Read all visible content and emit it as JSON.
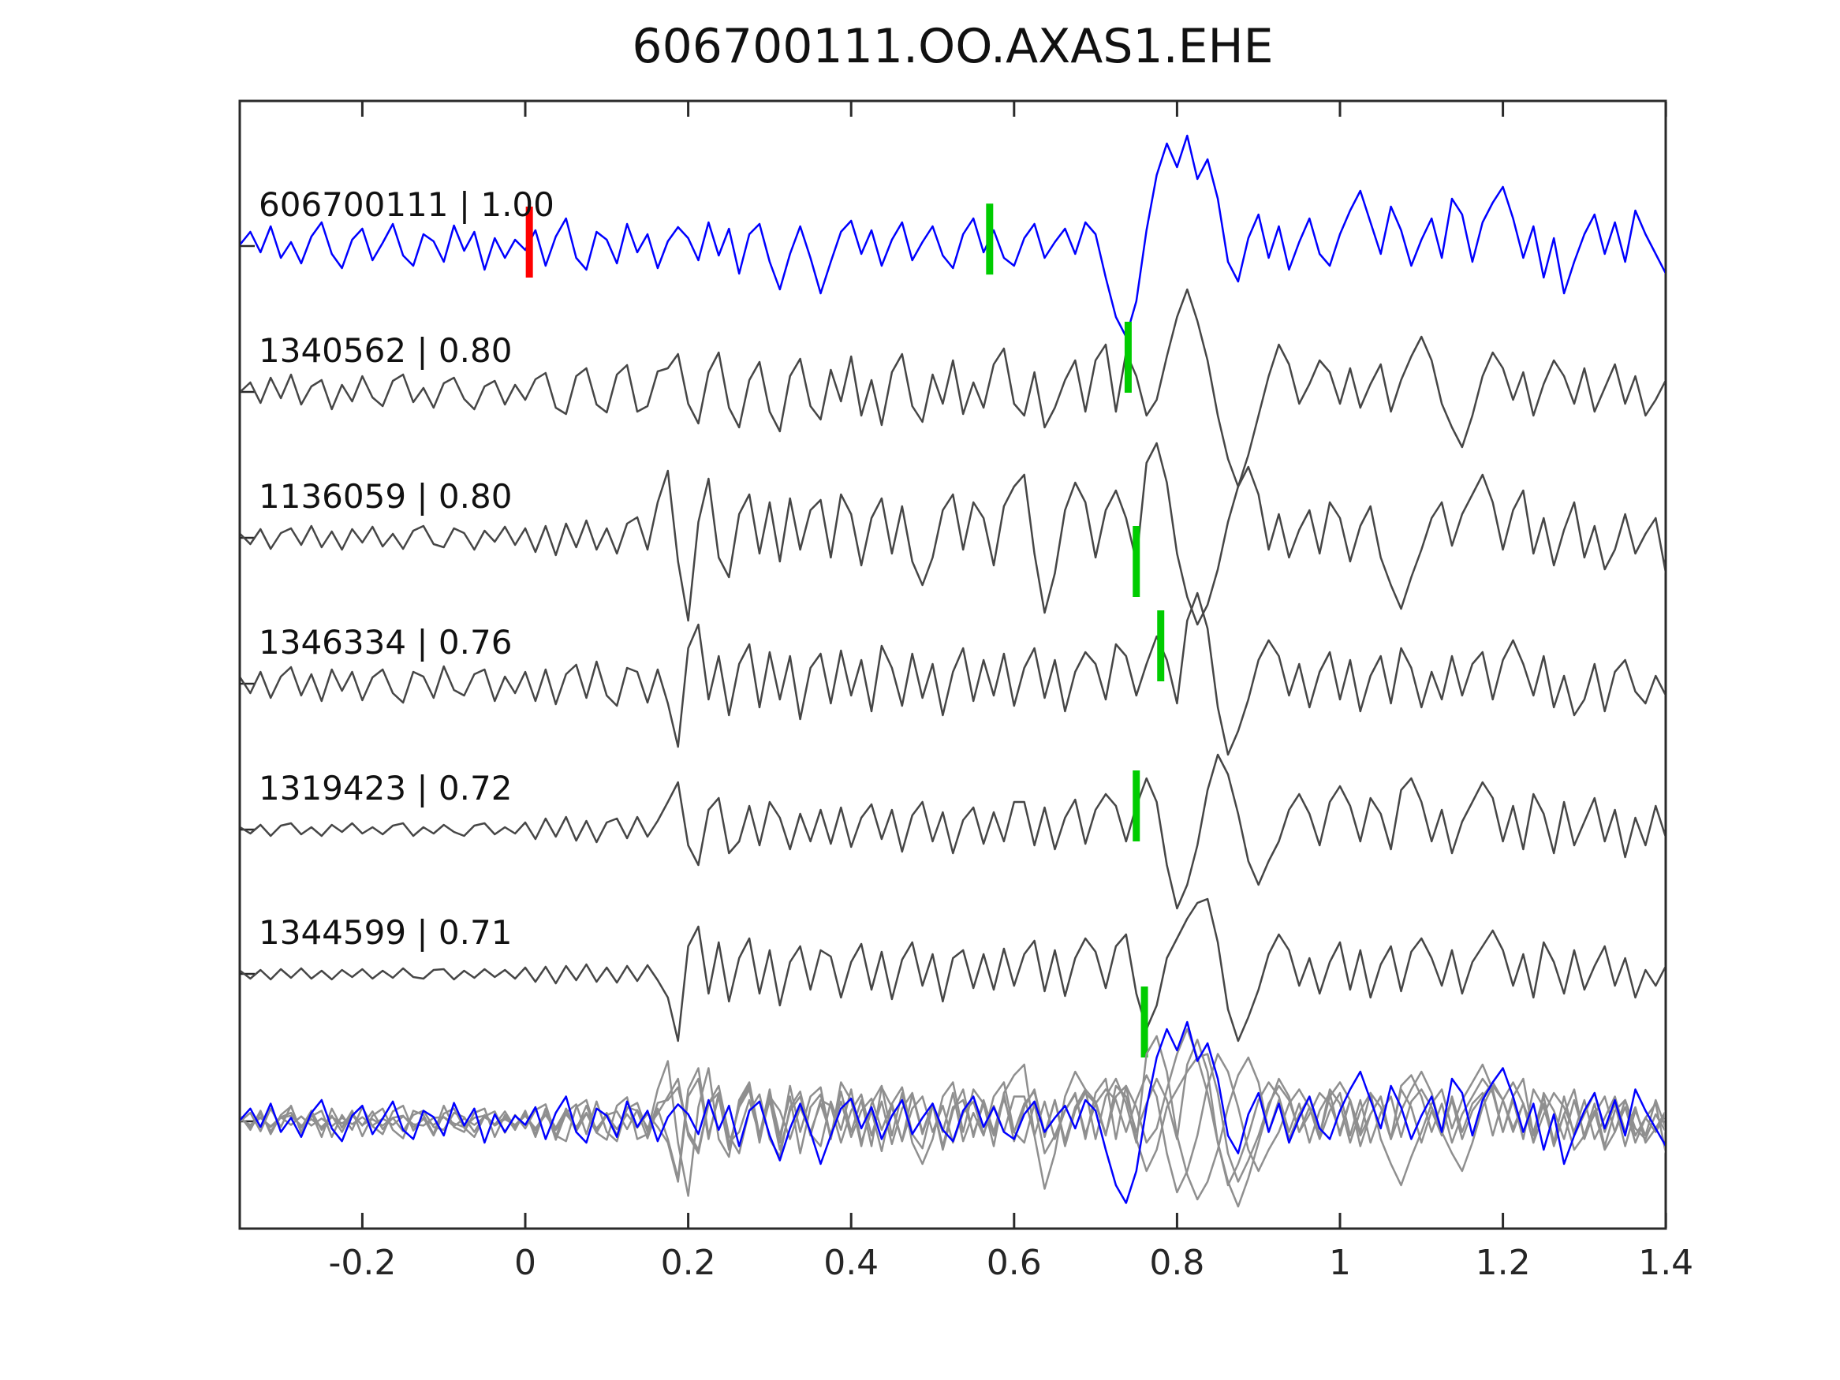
{
  "title": "606700111.OO.AXAS1.EHE",
  "colors": {
    "template_trace": "#0000ff",
    "detection_trace": "#464646",
    "overlay_gray": "#8f8f8f",
    "pick_marker_green": "#00cc00",
    "template_marker_red": "#ff0000",
    "axis": "#2a2a2a",
    "text": "#111111"
  },
  "chart_data": {
    "type": "line",
    "title": "606700111.OO.AXAS1.EHE",
    "xlabel": "",
    "ylabel": "",
    "grid": false,
    "legend": "none",
    "x_range": [
      -0.35,
      1.405
    ],
    "x_ticks": [
      -0.2,
      0,
      0.2,
      0.4,
      0.6,
      0.8,
      1,
      1.2,
      1.4
    ],
    "x_tick_labels": [
      "-0.2",
      "0",
      "0.2",
      "0.4",
      "0.6",
      "0.8",
      "1",
      "1.2",
      "1.4"
    ],
    "sample_t0": -0.35,
    "sample_dt": 0.0125,
    "traces": [
      {
        "id": "606700111",
        "correlation": "1.00",
        "label": "606700111 | 1.00",
        "role": "template",
        "color_key": "template_trace",
        "red_marker_t": 0.005,
        "green_marker_t": 0.57,
        "values": [
          2,
          18,
          -8,
          25,
          -15,
          5,
          -22,
          12,
          30,
          -10,
          -28,
          8,
          22,
          -18,
          4,
          28,
          -12,
          -25,
          15,
          6,
          -20,
          26,
          -6,
          18,
          -30,
          10,
          -15,
          8,
          -5,
          20,
          -25,
          12,
          35,
          -15,
          -30,
          18,
          8,
          -22,
          28,
          -8,
          15,
          -28,
          6,
          24,
          10,
          -18,
          30,
          -12,
          22,
          -35,
          15,
          28,
          -20,
          -55,
          -10,
          25,
          -15,
          -60,
          -20,
          18,
          32,
          -10,
          20,
          -25,
          8,
          30,
          -18,
          5,
          25,
          -12,
          -28,
          15,
          35,
          -8,
          20,
          -15,
          -25,
          10,
          28,
          -15,
          5,
          22,
          -10,
          30,
          15,
          -40,
          -90,
          -115,
          -70,
          20,
          90,
          130,
          100,
          140,
          85,
          110,
          60,
          -20,
          -45,
          10,
          40,
          -15,
          25,
          -30,
          5,
          35,
          -10,
          -25,
          15,
          45,
          70,
          30,
          -10,
          50,
          20,
          -25,
          8,
          35,
          -15,
          60,
          40,
          -20,
          30,
          55,
          75,
          35,
          -15,
          25,
          -40,
          10,
          -60,
          -20,
          15,
          40,
          -10,
          30,
          -20,
          45,
          15,
          -10,
          -35
        ]
      },
      {
        "id": "1340562",
        "correlation": "0.80",
        "label": "1340562 | 0.80",
        "role": "detection",
        "color_key": "detection_trace",
        "green_marker_t": 0.74,
        "values": [
          0,
          12,
          -14,
          18,
          -8,
          22,
          -16,
          7,
          15,
          -22,
          9,
          -12,
          20,
          -7,
          -18,
          14,
          22,
          -13,
          5,
          -20,
          11,
          18,
          -9,
          -22,
          7,
          14,
          -16,
          9,
          -10,
          16,
          24,
          -20,
          -28,
          20,
          30,
          -16,
          -26,
          22,
          34,
          -25,
          -18,
          26,
          30,
          48,
          -15,
          -40,
          25,
          50,
          -20,
          -45,
          15,
          38,
          -25,
          -50,
          20,
          42,
          -18,
          -35,
          28,
          -12,
          45,
          -30,
          15,
          -42,
          25,
          48,
          -18,
          -38,
          22,
          -15,
          40,
          -28,
          12,
          -20,
          35,
          55,
          -15,
          -30,
          25,
          -45,
          -20,
          15,
          40,
          -25,
          40,
          60,
          -25,
          50,
          20,
          -30,
          -10,
          45,
          95,
          130,
          90,
          40,
          -30,
          -85,
          -120,
          -80,
          -30,
          20,
          60,
          35,
          -15,
          10,
          40,
          25,
          -15,
          30,
          -20,
          10,
          35,
          -25,
          15,
          45,
          70,
          40,
          -15,
          -45,
          -70,
          -30,
          20,
          50,
          30,
          -10,
          25,
          -30,
          10,
          40,
          20,
          -15,
          30,
          -25,
          5,
          35,
          -15,
          20,
          -30,
          -10,
          15
        ]
      },
      {
        "id": "1136059",
        "correlation": "0.80",
        "label": "1136059 | 0.80",
        "role": "detection",
        "color_key": "detection_trace",
        "green_marker_t": 0.75,
        "values": [
          5,
          -8,
          11,
          -14,
          6,
          12,
          -9,
          15,
          -12,
          8,
          -15,
          11,
          -6,
          14,
          -11,
          5,
          -14,
          9,
          15,
          -8,
          -12,
          12,
          6,
          -15,
          9,
          -5,
          14,
          -9,
          12,
          -18,
          15,
          -22,
          18,
          -12,
          22,
          -15,
          12,
          -20,
          18,
          26,
          -15,
          45,
          85,
          -30,
          -105,
          20,
          75,
          -25,
          -50,
          30,
          55,
          -20,
          45,
          -30,
          50,
          -15,
          35,
          48,
          -25,
          55,
          30,
          -35,
          25,
          50,
          -20,
          40,
          -30,
          -60,
          -25,
          35,
          55,
          -15,
          45,
          25,
          -35,
          40,
          65,
          80,
          -20,
          -95,
          -45,
          35,
          70,
          45,
          -25,
          35,
          60,
          25,
          -30,
          95,
          120,
          70,
          -20,
          -75,
          -110,
          -85,
          -40,
          20,
          65,
          90,
          55,
          -15,
          30,
          -25,
          10,
          35,
          -20,
          45,
          25,
          -30,
          15,
          40,
          -25,
          -60,
          -90,
          -50,
          -15,
          25,
          45,
          -10,
          30,
          55,
          80,
          45,
          -15,
          35,
          60,
          -20,
          25,
          -35,
          10,
          45,
          -25,
          15,
          -40,
          -15,
          30,
          -20,
          5,
          25,
          -45
        ]
      },
      {
        "id": "1346334",
        "correlation": "0.76",
        "label": "1346334 | 0.76",
        "role": "detection",
        "color_key": "detection_trace",
        "green_marker_t": 0.78,
        "values": [
          8,
          -12,
          15,
          -18,
          9,
          21,
          -15,
          12,
          -22,
          18,
          -9,
          15,
          -21,
          8,
          18,
          -12,
          -24,
          15,
          9,
          -18,
          22,
          -8,
          -15,
          12,
          18,
          -22,
          9,
          -12,
          15,
          -22,
          18,
          -26,
          12,
          24,
          -18,
          28,
          -15,
          -28,
          20,
          15,
          -24,
          18,
          -25,
          -80,
          45,
          75,
          -20,
          35,
          -40,
          25,
          50,
          -30,
          40,
          -20,
          35,
          -45,
          20,
          38,
          -25,
          42,
          -15,
          30,
          -35,
          48,
          20,
          -28,
          38,
          -18,
          25,
          -40,
          15,
          45,
          -22,
          30,
          -15,
          38,
          -28,
          20,
          45,
          -18,
          30,
          -35,
          15,
          40,
          25,
          -20,
          50,
          35,
          -15,
          25,
          60,
          30,
          -25,
          80,
          115,
          70,
          -30,
          -90,
          -60,
          -20,
          30,
          55,
          35,
          -15,
          25,
          -30,
          15,
          40,
          -20,
          30,
          -35,
          10,
          35,
          -25,
          45,
          20,
          -30,
          15,
          -20,
          35,
          -15,
          25,
          40,
          -20,
          30,
          55,
          25,
          -15,
          35,
          -30,
          10,
          -40,
          -20,
          25,
          -35,
          15,
          30,
          -10,
          -25,
          10,
          -15
        ]
      },
      {
        "id": "1319423",
        "correlation": "0.72",
        "label": "1319423 | 0.72",
        "role": "detection",
        "color_key": "detection_trace",
        "green_marker_t": 0.75,
        "values": [
          3,
          -5,
          6,
          -8,
          5,
          8,
          -6,
          3,
          -8,
          6,
          -3,
          8,
          -5,
          3,
          -6,
          5,
          8,
          -8,
          3,
          -5,
          6,
          -3,
          -8,
          5,
          8,
          -6,
          3,
          -5,
          9,
          -12,
          14,
          -9,
          16,
          -14,
          11,
          -16,
          9,
          14,
          -11,
          16,
          -9,
          11,
          35,
          60,
          -20,
          -45,
          25,
          40,
          -30,
          -15,
          30,
          -20,
          35,
          15,
          -25,
          20,
          -15,
          25,
          -18,
          28,
          -22,
          15,
          32,
          -12,
          25,
          -28,
          18,
          35,
          -15,
          22,
          -30,
          12,
          28,
          -18,
          22,
          -15,
          35,
          35,
          -20,
          28,
          -25,
          15,
          38,
          -18,
          25,
          45,
          30,
          -15,
          30,
          65,
          35,
          -45,
          -100,
          -70,
          -20,
          50,
          95,
          70,
          20,
          -40,
          -70,
          -40,
          -15,
          25,
          45,
          20,
          -20,
          35,
          55,
          30,
          -15,
          40,
          20,
          -25,
          50,
          65,
          35,
          -15,
          25,
          -30,
          10,
          35,
          60,
          40,
          -15,
          30,
          -25,
          45,
          20,
          -30,
          35,
          -20,
          10,
          40,
          -15,
          25,
          -35,
          15,
          -20,
          30,
          -10
        ]
      },
      {
        "id": "1344599",
        "correlation": "0.71",
        "label": "1344599 | 0.71",
        "role": "detection",
        "color_key": "detection_trace",
        "green_marker_t": 0.76,
        "values": [
          4,
          -6,
          5,
          -7,
          6,
          -5,
          7,
          -6,
          4,
          -7,
          5,
          -4,
          6,
          -6,
          4,
          -5,
          7,
          -4,
          -6,
          5,
          6,
          -7,
          4,
          -5,
          6,
          -4,
          5,
          -6,
          8,
          -10,
          9,
          -12,
          10,
          -8,
          12,
          -10,
          8,
          -11,
          10,
          -9,
          11,
          -8,
          -30,
          -85,
          35,
          60,
          -25,
          40,
          -35,
          20,
          45,
          -25,
          30,
          -40,
          15,
          35,
          -20,
          30,
          22,
          -30,
          15,
          38,
          -20,
          28,
          -32,
          18,
          40,
          -15,
          25,
          -35,
          20,
          30,
          -18,
          25,
          -20,
          32,
          -15,
          25,
          42,
          -22,
          30,
          -28,
          20,
          45,
          28,
          -18,
          35,
          50,
          -25,
          -70,
          -40,
          20,
          45,
          70,
          90,
          95,
          40,
          -45,
          -85,
          -55,
          -20,
          25,
          50,
          30,
          -15,
          20,
          -25,
          15,
          40,
          -20,
          30,
          -30,
          12,
          35,
          -22,
          28,
          45,
          20,
          -15,
          30,
          -25,
          15,
          35,
          55,
          30,
          -15,
          25,
          -30,
          40,
          15,
          -25,
          30,
          -20,
          10,
          35,
          -15,
          20,
          -30,
          5,
          -15,
          10
        ]
      }
    ],
    "overlay": {
      "description": "all detection traces superimposed with template",
      "gray_member_indices": [
        1,
        2,
        3,
        4,
        5
      ],
      "blue_member_index": 0,
      "amplitude_scale": 0.9
    }
  }
}
